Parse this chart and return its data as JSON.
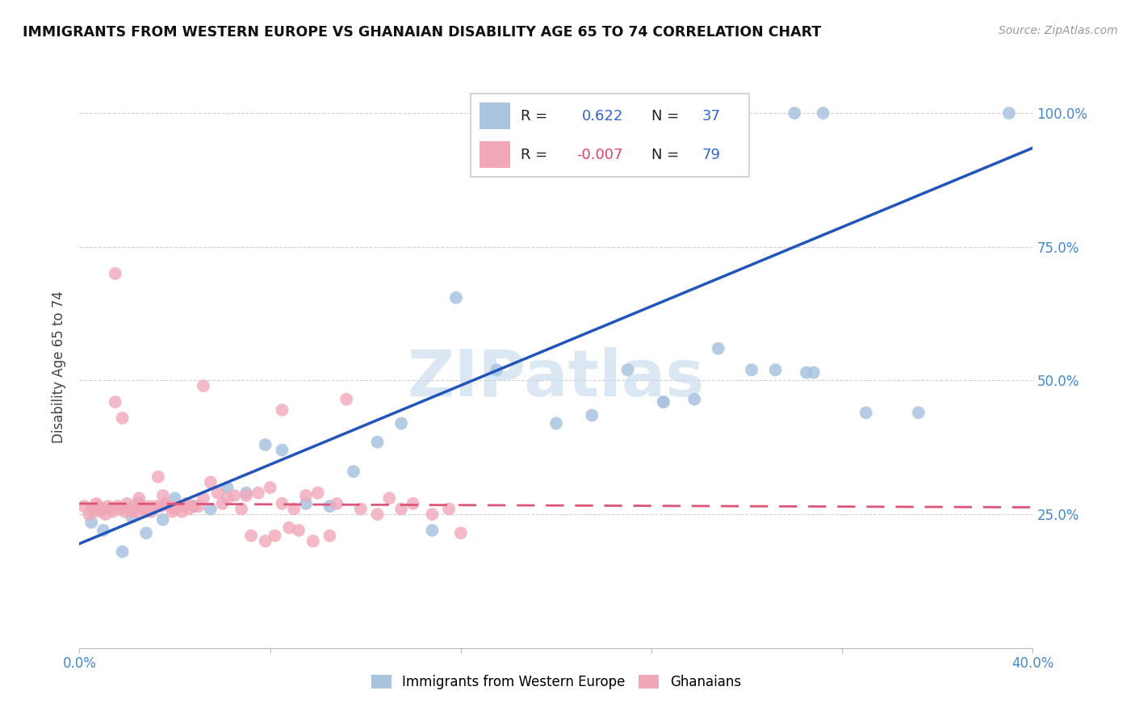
{
  "title": "IMMIGRANTS FROM WESTERN EUROPE VS GHANAIAN DISABILITY AGE 65 TO 74 CORRELATION CHART",
  "source": "Source: ZipAtlas.com",
  "ylabel": "Disability Age 65 to 74",
  "xlim": [
    0.0,
    0.4
  ],
  "ylim": [
    0.0,
    1.05
  ],
  "x_tick_positions": [
    0.0,
    0.08,
    0.16,
    0.24,
    0.32,
    0.4
  ],
  "x_tick_labels": [
    "0.0%",
    "",
    "",
    "",
    "",
    "40.0%"
  ],
  "y_ticks": [
    0.25,
    0.5,
    0.75,
    1.0
  ],
  "y_tick_labels": [
    "25.0%",
    "50.0%",
    "75.0%",
    "100.0%"
  ],
  "r_blue": 0.622,
  "n_blue": 37,
  "r_pink": -0.007,
  "n_pink": 79,
  "blue_color": "#aac4e0",
  "pink_color": "#f0a8b8",
  "blue_line_color": "#2255bb",
  "pink_line_color": "#dd5577",
  "watermark": "ZIPatlas",
  "blue_scatter_x": [
    0.005,
    0.01,
    0.018,
    0.022,
    0.028,
    0.035,
    0.04,
    0.048,
    0.055,
    0.062,
    0.07,
    0.078,
    0.085,
    0.095,
    0.105,
    0.115,
    0.125,
    0.135,
    0.148,
    0.158,
    0.175,
    0.2,
    0.215,
    0.23,
    0.245,
    0.258,
    0.268,
    0.282,
    0.292,
    0.3,
    0.312,
    0.33,
    0.352,
    0.39,
    0.305,
    0.308,
    0.245
  ],
  "blue_scatter_y": [
    0.235,
    0.22,
    0.18,
    0.245,
    0.215,
    0.24,
    0.28,
    0.265,
    0.26,
    0.3,
    0.29,
    0.38,
    0.37,
    0.27,
    0.265,
    0.33,
    0.385,
    0.42,
    0.22,
    0.655,
    0.52,
    0.42,
    0.435,
    0.52,
    0.46,
    0.465,
    0.56,
    0.52,
    0.52,
    1.0,
    1.0,
    0.44,
    0.44,
    1.0,
    0.515,
    0.515,
    0.46
  ],
  "pink_scatter_x": [
    0.002,
    0.004,
    0.005,
    0.006,
    0.007,
    0.008,
    0.009,
    0.01,
    0.011,
    0.012,
    0.013,
    0.014,
    0.015,
    0.016,
    0.017,
    0.018,
    0.019,
    0.02,
    0.021,
    0.022,
    0.023,
    0.024,
    0.025,
    0.026,
    0.027,
    0.028,
    0.029,
    0.03,
    0.031,
    0.032,
    0.033,
    0.034,
    0.035,
    0.036,
    0.038,
    0.039,
    0.04,
    0.042,
    0.043,
    0.044,
    0.045,
    0.046,
    0.048,
    0.05,
    0.052,
    0.055,
    0.058,
    0.06,
    0.062,
    0.065,
    0.068,
    0.07,
    0.072,
    0.075,
    0.078,
    0.08,
    0.082,
    0.085,
    0.088,
    0.09,
    0.092,
    0.095,
    0.098,
    0.1,
    0.105,
    0.108,
    0.112,
    0.118,
    0.125,
    0.13,
    0.135,
    0.14,
    0.148,
    0.155,
    0.015,
    0.025,
    0.052,
    0.085,
    0.16
  ],
  "pink_scatter_y": [
    0.265,
    0.25,
    0.26,
    0.255,
    0.27,
    0.265,
    0.255,
    0.26,
    0.25,
    0.265,
    0.26,
    0.255,
    0.7,
    0.265,
    0.26,
    0.43,
    0.255,
    0.27,
    0.26,
    0.255,
    0.265,
    0.255,
    0.27,
    0.265,
    0.26,
    0.255,
    0.265,
    0.255,
    0.26,
    0.265,
    0.32,
    0.265,
    0.285,
    0.27,
    0.265,
    0.255,
    0.26,
    0.265,
    0.255,
    0.265,
    0.27,
    0.26,
    0.265,
    0.265,
    0.28,
    0.31,
    0.29,
    0.27,
    0.28,
    0.285,
    0.26,
    0.285,
    0.21,
    0.29,
    0.2,
    0.3,
    0.21,
    0.27,
    0.225,
    0.26,
    0.22,
    0.285,
    0.2,
    0.29,
    0.21,
    0.27,
    0.465,
    0.26,
    0.25,
    0.28,
    0.26,
    0.27,
    0.25,
    0.26,
    0.46,
    0.28,
    0.49,
    0.445,
    0.215
  ],
  "blue_line_x": [
    0.0,
    0.4
  ],
  "blue_line_y": [
    0.195,
    0.935
  ],
  "pink_line_x": [
    0.0,
    0.4
  ],
  "pink_line_y": [
    0.27,
    0.263
  ]
}
